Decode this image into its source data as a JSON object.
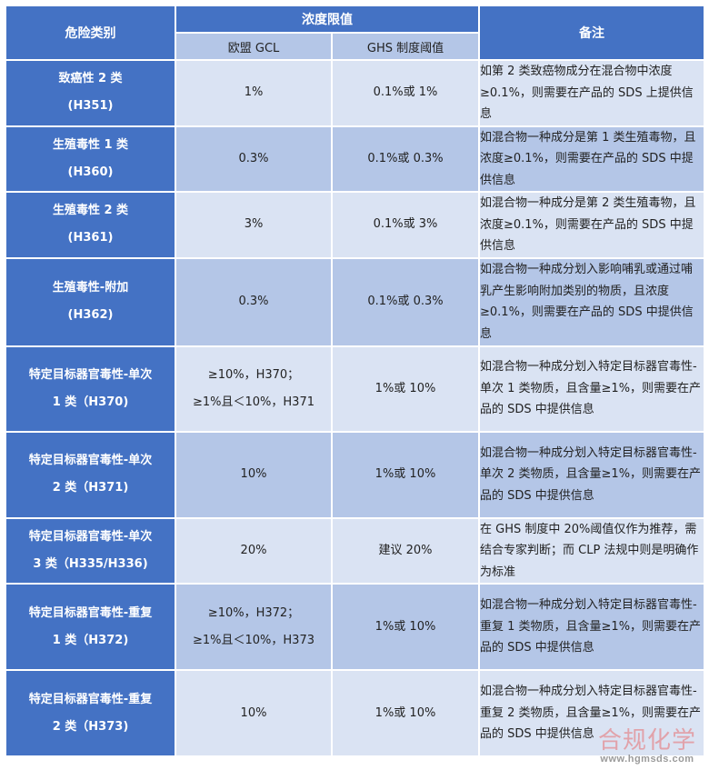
{
  "table": {
    "headers": {
      "category": "危险类别",
      "concentration_group": "浓度限值",
      "eu_gcl": "欧盟 GCL",
      "ghs_threshold": "GHS 制度阈值",
      "remarks": "备注"
    },
    "rows": [
      {
        "category": [
          "致癌性 2 类",
          "(H351)"
        ],
        "eu_gcl": [
          "1%"
        ],
        "ghs": [
          "0.1%或 1%"
        ],
        "remark": "如第 2 类致癌物成分在混合物中浓度≥0.1%，则需要在产品的 SDS 上提供信息",
        "shade": "light"
      },
      {
        "category": [
          "生殖毒性 1 类",
          "(H360)"
        ],
        "eu_gcl": [
          "0.3%"
        ],
        "ghs": [
          "0.1%或 0.3%"
        ],
        "remark": "如混合物一种成分是第 1 类生殖毒物，且浓度≥0.1%，则需要在产品的 SDS 中提供信息",
        "shade": "dark"
      },
      {
        "category": [
          "生殖毒性 2 类",
          "(H361)"
        ],
        "eu_gcl": [
          "3%"
        ],
        "ghs": [
          "0.1%或 3%"
        ],
        "remark": "如混合物一种成分是第 2 类生殖毒物，且浓度≥0.1%，则需要在产品的 SDS 中提供信息",
        "shade": "light"
      },
      {
        "category": [
          "生殖毒性-附加",
          "(H362)"
        ],
        "eu_gcl": [
          "0.3%"
        ],
        "ghs": [
          "0.1%或 0.3%"
        ],
        "remark": "如混合物一种成分划入影响哺乳或通过哺乳产生影响附加类别的物质，且浓度≥0.1%，则需要在产品的 SDS 中提供信息",
        "shade": "dark"
      },
      {
        "category": [
          "特定目标器官毒性-单次",
          "1 类（H370)"
        ],
        "eu_gcl": [
          "≥10%，H370；",
          "≥1%且＜10%，H371"
        ],
        "ghs": [
          "1%或 10%"
        ],
        "remark": "如混合物一种成分划入特定目标器官毒性-单次 1 类物质，且含量≥1%，则需要在产品的 SDS 中提供信息",
        "shade": "light"
      },
      {
        "category": [
          "特定目标器官毒性-单次",
          "2 类（H371)"
        ],
        "eu_gcl": [
          "10%"
        ],
        "ghs": [
          "1%或 10%"
        ],
        "remark": "如混合物一种成分划入特定目标器官毒性-单次 2 类物质，且含量≥1%，则需要在产品的 SDS 中提供信息",
        "shade": "dark"
      },
      {
        "category": [
          "特定目标器官毒性-单次",
          "3 类（H335/H336)"
        ],
        "eu_gcl": [
          "20%"
        ],
        "ghs": [
          "建议 20%"
        ],
        "remark": "在 GHS 制度中 20%阈值仅作为推荐，需结合专家判断；而 CLP 法规中则是明确作为标准",
        "shade": "light"
      },
      {
        "category": [
          "特定目标器官毒性-重复",
          "1 类（H372)"
        ],
        "eu_gcl": [
          "≥10%，H372；",
          "≥1%且＜10%，H373"
        ],
        "ghs": [
          "1%或 10%"
        ],
        "remark": "如混合物一种成分划入特定目标器官毒性-重复 1 类物质，且含量≥1%，则需要在产品的 SDS 中提供信息",
        "shade": "dark"
      },
      {
        "category": [
          "特定目标器官毒性-重复",
          "2 类（H373)"
        ],
        "eu_gcl": [
          "10%"
        ],
        "ghs": [
          "1%或 10%"
        ],
        "remark": "如混合物一种成分划入特定目标器官毒性-重复 2 类物质，且含量≥1%，则需要在产品的 SDS 中提供信息",
        "shade": "light"
      }
    ]
  },
  "watermark": {
    "brand": "合规化学",
    "url": "www.hgmsds.com"
  },
  "colors": {
    "header_blue": "#4472c4",
    "subheader": "#b4c6e7",
    "row_light": "#dae3f3",
    "row_dark": "#b4c6e7"
  }
}
